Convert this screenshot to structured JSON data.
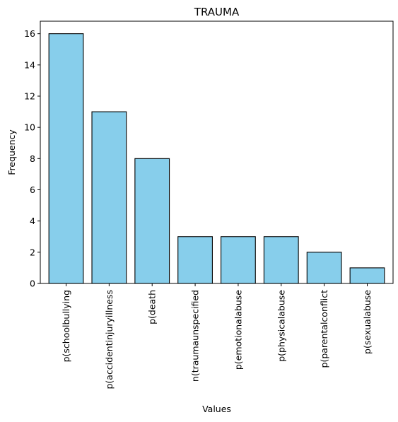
{
  "chart_data": {
    "type": "bar",
    "title": "TRAUMA",
    "xlabel": "Values",
    "ylabel": "Frequency",
    "categories": [
      "p(schoolbullying",
      "p(accidentinjuryillness",
      "p(death",
      "n(traumaunspecified",
      "p(emotionalabuse",
      "p(physicalabuse",
      "p(parentalconflict",
      "p(sexualabuse"
    ],
    "values": [
      16,
      11,
      8,
      3,
      3,
      3,
      2,
      1
    ],
    "ylim": [
      0,
      16.8
    ],
    "yticks": [
      0,
      2,
      4,
      6,
      8,
      10,
      12,
      14,
      16
    ],
    "grid": false,
    "legend": "none",
    "colors": {
      "bar_fill": "#87ceeb",
      "bar_edge": "#000000",
      "axis": "#000000"
    }
  }
}
